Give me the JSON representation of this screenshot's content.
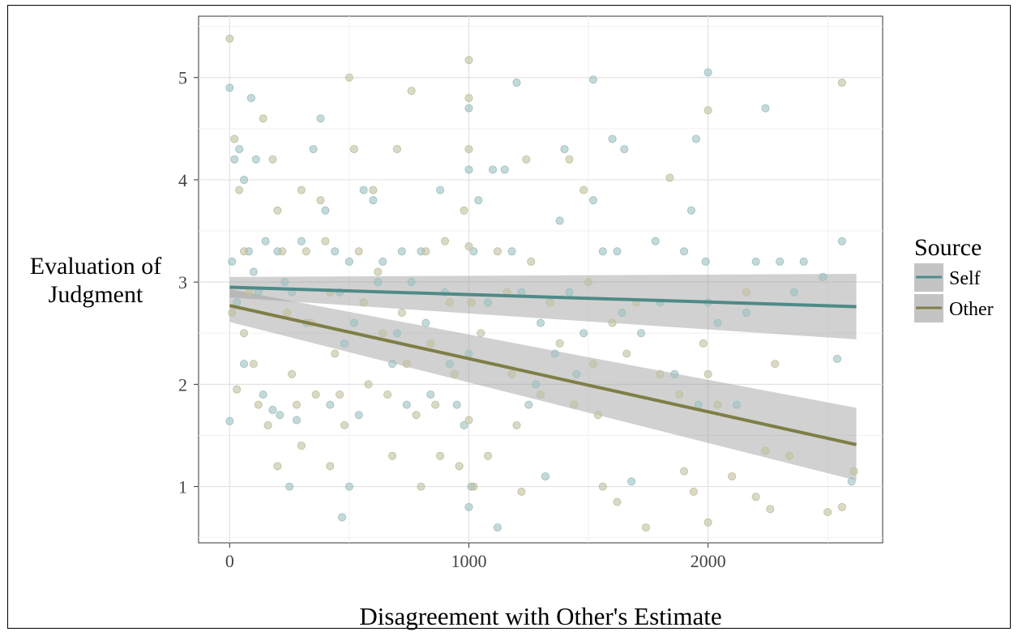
{
  "chart_data": {
    "type": "scatter",
    "xlabel": "Disagreement with Other's Estimate",
    "ylabel_lines": [
      "Evaluation of",
      "Judgment"
    ],
    "xlim": [
      -130,
      2730
    ],
    "ylim": [
      0.45,
      5.6
    ],
    "x_ticks": [
      0,
      1000,
      2000
    ],
    "x_tick_labels": [
      "0",
      "1000",
      "2000"
    ],
    "y_ticks": [
      1,
      2,
      3,
      4,
      5
    ],
    "y_tick_labels": [
      "1",
      "2",
      "3",
      "4",
      "5"
    ],
    "grid": true,
    "legend": {
      "title": "Source",
      "placement": "right",
      "entries": [
        {
          "label": "Self",
          "color": "#4e8a88"
        },
        {
          "label": "Other",
          "color": "#7e7e46"
        }
      ]
    },
    "series": [
      {
        "name": "Self",
        "color": "#4e8a88",
        "point_color": "#9cbfc0",
        "fit": {
          "x": [
            0,
            2620
          ],
          "y": [
            2.95,
            2.76
          ]
        },
        "ci": {
          "x": [
            0,
            2620
          ],
          "upper": [
            3.05,
            3.08
          ],
          "lower": [
            2.85,
            2.44
          ]
        },
        "points": [
          [
            0,
            4.9
          ],
          [
            20,
            4.2
          ],
          [
            40,
            4.3
          ],
          [
            60,
            4.0
          ],
          [
            80,
            3.3
          ],
          [
            10,
            3.2
          ],
          [
            100,
            3.1
          ],
          [
            120,
            2.9
          ],
          [
            30,
            2.8
          ],
          [
            140,
            1.9
          ],
          [
            60,
            2.2
          ],
          [
            0,
            1.64
          ],
          [
            90,
            4.8
          ],
          [
            110,
            4.2
          ],
          [
            200,
            3.3
          ],
          [
            150,
            3.4
          ],
          [
            230,
            3.0
          ],
          [
            260,
            2.9
          ],
          [
            300,
            3.4
          ],
          [
            320,
            2.6
          ],
          [
            180,
            1.75
          ],
          [
            210,
            1.7
          ],
          [
            250,
            1.0
          ],
          [
            280,
            1.65
          ],
          [
            350,
            4.3
          ],
          [
            380,
            4.6
          ],
          [
            400,
            3.7
          ],
          [
            440,
            3.3
          ],
          [
            460,
            2.9
          ],
          [
            480,
            2.4
          ],
          [
            420,
            1.8
          ],
          [
            500,
            3.2
          ],
          [
            520,
            2.6
          ],
          [
            540,
            1.7
          ],
          [
            500,
            1.0
          ],
          [
            470,
            0.7
          ],
          [
            560,
            3.9
          ],
          [
            600,
            3.8
          ],
          [
            640,
            3.2
          ],
          [
            620,
            3.0
          ],
          [
            680,
            2.2
          ],
          [
            700,
            2.5
          ],
          [
            720,
            3.3
          ],
          [
            760,
            3.0
          ],
          [
            740,
            1.8
          ],
          [
            800,
            3.3
          ],
          [
            820,
            2.6
          ],
          [
            840,
            1.9
          ],
          [
            880,
            3.9
          ],
          [
            900,
            2.9
          ],
          [
            920,
            2.2
          ],
          [
            950,
            1.8
          ],
          [
            980,
            1.6
          ],
          [
            1000,
            4.7
          ],
          [
            1000,
            4.1
          ],
          [
            1020,
            3.3
          ],
          [
            1000,
            2.3
          ],
          [
            1010,
            1.0
          ],
          [
            1000,
            0.8
          ],
          [
            1040,
            3.8
          ],
          [
            1080,
            2.8
          ],
          [
            1100,
            4.1
          ],
          [
            1150,
            4.1
          ],
          [
            1180,
            3.3
          ],
          [
            1200,
            4.95
          ],
          [
            1220,
            2.9
          ],
          [
            1250,
            1.8
          ],
          [
            1280,
            2.0
          ],
          [
            1300,
            2.6
          ],
          [
            1320,
            1.1
          ],
          [
            1360,
            2.3
          ],
          [
            1120,
            0.6
          ],
          [
            1380,
            3.6
          ],
          [
            1400,
            4.3
          ],
          [
            1420,
            2.9
          ],
          [
            1450,
            2.1
          ],
          [
            1480,
            2.5
          ],
          [
            1520,
            4.98
          ],
          [
            1520,
            3.8
          ],
          [
            1560,
            3.3
          ],
          [
            1600,
            4.4
          ],
          [
            1620,
            3.3
          ],
          [
            1650,
            4.3
          ],
          [
            1640,
            2.7
          ],
          [
            1680,
            1.05
          ],
          [
            1720,
            2.5
          ],
          [
            1780,
            3.4
          ],
          [
            1800,
            2.8
          ],
          [
            1860,
            2.1
          ],
          [
            1900,
            3.3
          ],
          [
            1930,
            3.7
          ],
          [
            1950,
            4.4
          ],
          [
            1990,
            3.2
          ],
          [
            2000,
            2.8
          ],
          [
            2000,
            5.05
          ],
          [
            2040,
            2.6
          ],
          [
            2120,
            1.8
          ],
          [
            2160,
            2.7
          ],
          [
            2200,
            3.2
          ],
          [
            2240,
            4.7
          ],
          [
            2300,
            3.2
          ],
          [
            2360,
            2.9
          ],
          [
            2400,
            3.2
          ],
          [
            2480,
            3.05
          ],
          [
            2540,
            2.25
          ],
          [
            2560,
            3.4
          ],
          [
            2600,
            1.05
          ],
          [
            1960,
            1.8
          ]
        ]
      },
      {
        "name": "Other",
        "color": "#7e7e46",
        "point_color": "#bfbf9e",
        "fit": {
          "x": [
            0,
            2620
          ],
          "y": [
            2.77,
            1.41
          ]
        },
        "ci": {
          "x": [
            0,
            2620
          ],
          "upper": [
            2.93,
            1.77
          ],
          "lower": [
            2.61,
            1.06
          ]
        },
        "points": [
          [
            0,
            5.38
          ],
          [
            20,
            4.4
          ],
          [
            40,
            3.9
          ],
          [
            60,
            3.3
          ],
          [
            80,
            2.9
          ],
          [
            10,
            2.7
          ],
          [
            100,
            2.2
          ],
          [
            120,
            1.8
          ],
          [
            30,
            1.95
          ],
          [
            140,
            4.6
          ],
          [
            60,
            2.5
          ],
          [
            160,
            1.6
          ],
          [
            180,
            4.2
          ],
          [
            200,
            3.7
          ],
          [
            220,
            3.3
          ],
          [
            240,
            2.7
          ],
          [
            260,
            2.1
          ],
          [
            280,
            1.8
          ],
          [
            300,
            3.9
          ],
          [
            320,
            3.3
          ],
          [
            340,
            2.6
          ],
          [
            360,
            1.9
          ],
          [
            200,
            1.2
          ],
          [
            300,
            1.4
          ],
          [
            380,
            3.8
          ],
          [
            400,
            3.4
          ],
          [
            420,
            2.9
          ],
          [
            440,
            2.3
          ],
          [
            460,
            1.9
          ],
          [
            480,
            1.6
          ],
          [
            420,
            1.2
          ],
          [
            500,
            5.0
          ],
          [
            520,
            4.3
          ],
          [
            540,
            3.3
          ],
          [
            560,
            2.8
          ],
          [
            580,
            2.0
          ],
          [
            600,
            3.9
          ],
          [
            620,
            3.1
          ],
          [
            640,
            2.5
          ],
          [
            660,
            1.9
          ],
          [
            680,
            1.3
          ],
          [
            700,
            4.3
          ],
          [
            720,
            2.7
          ],
          [
            740,
            2.2
          ],
          [
            760,
            4.87
          ],
          [
            780,
            1.7
          ],
          [
            800,
            1.0
          ],
          [
            820,
            3.3
          ],
          [
            840,
            2.4
          ],
          [
            860,
            1.8
          ],
          [
            880,
            1.3
          ],
          [
            900,
            3.4
          ],
          [
            920,
            2.8
          ],
          [
            940,
            2.1
          ],
          [
            960,
            1.2
          ],
          [
            980,
            3.7
          ],
          [
            1000,
            5.17
          ],
          [
            1000,
            4.8
          ],
          [
            1000,
            4.3
          ],
          [
            1000,
            3.35
          ],
          [
            1010,
            2.8
          ],
          [
            1000,
            1.65
          ],
          [
            1020,
            1.0
          ],
          [
            1050,
            2.5
          ],
          [
            1080,
            1.3
          ],
          [
            1120,
            3.3
          ],
          [
            1160,
            2.9
          ],
          [
            1180,
            2.1
          ],
          [
            1200,
            1.6
          ],
          [
            1220,
            0.95
          ],
          [
            1240,
            4.2
          ],
          [
            1260,
            3.2
          ],
          [
            1300,
            1.9
          ],
          [
            1340,
            2.8
          ],
          [
            1380,
            2.4
          ],
          [
            1420,
            4.2
          ],
          [
            1440,
            1.8
          ],
          [
            1480,
            3.9
          ],
          [
            1500,
            3.0
          ],
          [
            1520,
            2.2
          ],
          [
            1540,
            1.7
          ],
          [
            1560,
            1.0
          ],
          [
            1600,
            2.6
          ],
          [
            1620,
            0.85
          ],
          [
            1660,
            2.3
          ],
          [
            1700,
            2.8
          ],
          [
            1740,
            0.6
          ],
          [
            1800,
            2.1
          ],
          [
            1840,
            4.02
          ],
          [
            1880,
            1.9
          ],
          [
            1900,
            1.15
          ],
          [
            1940,
            0.95
          ],
          [
            1980,
            2.4
          ],
          [
            2000,
            4.68
          ],
          [
            2000,
            2.1
          ],
          [
            2000,
            0.65
          ],
          [
            2040,
            1.8
          ],
          [
            2100,
            1.1
          ],
          [
            2160,
            2.9
          ],
          [
            2200,
            0.9
          ],
          [
            2240,
            1.35
          ],
          [
            2260,
            0.78
          ],
          [
            2280,
            2.2
          ],
          [
            2340,
            1.3
          ],
          [
            2500,
            0.75
          ],
          [
            2560,
            4.95
          ],
          [
            2560,
            0.8
          ],
          [
            2610,
            1.15
          ]
        ]
      }
    ]
  }
}
